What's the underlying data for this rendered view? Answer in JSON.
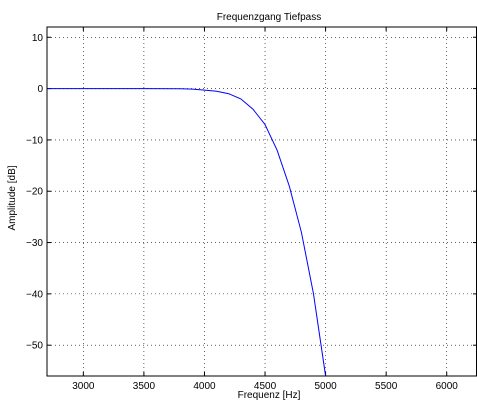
{
  "chart_data": {
    "type": "line",
    "title": "Frequenzgang Tiefpass",
    "xlabel": "Frequenz [Hz]",
    "ylabel": "Amplitude [dB]",
    "xlim": [
      2700,
      6250
    ],
    "ylim": [
      -56,
      12
    ],
    "xticks": [
      3000,
      3500,
      4000,
      4500,
      5000,
      5500,
      6000
    ],
    "xtick_labels": [
      "3000",
      "3500",
      "4000",
      "4500",
      "5000",
      "5500",
      "6000"
    ],
    "yticks": [
      10,
      0,
      -10,
      -20,
      -30,
      -40,
      -50
    ],
    "ytick_labels": [
      "10",
      "0",
      "−10",
      "−20",
      "−30",
      "−40",
      "−50"
    ],
    "grid": true,
    "line_color": "#0000ff",
    "series": [
      {
        "x": [
          2700,
          3000,
          3500,
          3800,
          3900,
          4000,
          4100,
          4200,
          4300,
          4400,
          4500,
          4600,
          4700,
          4800,
          4900,
          5000
        ],
        "values": [
          0,
          0,
          0,
          -0.05,
          -0.1,
          -0.3,
          -0.5,
          -1.0,
          -2.0,
          -4.0,
          -7.0,
          -12.0,
          -19.0,
          -28.0,
          -40.0,
          -56.0
        ]
      }
    ]
  }
}
